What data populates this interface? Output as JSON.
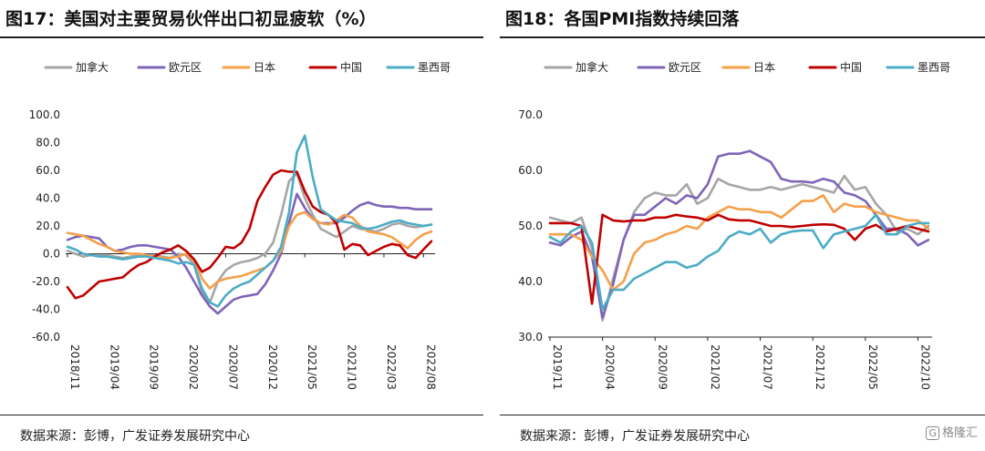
{
  "legend_series": [
    "加拿大",
    "欧元区",
    "日本",
    "中国",
    "墨西哥"
  ],
  "colors": [
    "#a6a6a6",
    "#7f64b8",
    "#f5a04a",
    "#c00000",
    "#4bacc6"
  ],
  "source_text": "数据来源：彭博，广发证券发展研究中心",
  "watermark": "格隆汇",
  "watermark_icon": "G",
  "chart_data": [
    {
      "type": "line",
      "title": "图17：美国对主要贸易伙伴出口初显疲软（%）",
      "xlabel": "",
      "ylabel": "",
      "ylim": [
        -60,
        100
      ],
      "yticks": [
        -60,
        -40,
        -20,
        0,
        20,
        40,
        60,
        80,
        100
      ],
      "ytick_labels": [
        "-60.0",
        "-40.0",
        "-20.0",
        "0.0",
        "20.0",
        "40.0",
        "60.0",
        "80.0",
        "100.0"
      ],
      "x": [
        "2018/11",
        "2018/12",
        "2019/01",
        "2019/02",
        "2019/03",
        "2019/04",
        "2019/05",
        "2019/06",
        "2019/07",
        "2019/08",
        "2019/09",
        "2019/10",
        "2019/11",
        "2019/12",
        "2020/01",
        "2020/02",
        "2020/03",
        "2020/04",
        "2020/05",
        "2020/06",
        "2020/07",
        "2020/08",
        "2020/09",
        "2020/10",
        "2020/11",
        "2020/12",
        "2021/01",
        "2021/02",
        "2021/03",
        "2021/04",
        "2021/05",
        "2021/06",
        "2021/07",
        "2021/08",
        "2021/09",
        "2021/10",
        "2021/11",
        "2021/12",
        "2022/01",
        "2022/02",
        "2022/03",
        "2022/04",
        "2022/05",
        "2022/06",
        "2022/07",
        "2022/08",
        "2022/09"
      ],
      "xtick_labels": [
        "2018/11",
        "2019/04",
        "2019/09",
        "2020/02",
        "2020/07",
        "2020/12",
        "2021/05",
        "2021/10",
        "2022/03",
        "2022/08"
      ],
      "legend": "top",
      "grid": false,
      "series": [
        {
          "name": "加拿大",
          "values": [
            2,
            0,
            -2,
            -1,
            -1,
            -1,
            -2,
            -3,
            -2,
            -1,
            -1,
            -1,
            -2,
            -3,
            0,
            -1,
            -8,
            -28,
            -35,
            -20,
            -12,
            -8,
            -6,
            -5,
            -3,
            0,
            8,
            28,
            52,
            58,
            40,
            28,
            18,
            15,
            12,
            16,
            20,
            18,
            17,
            16,
            18,
            21,
            22,
            20,
            19,
            20,
            21
          ]
        },
        {
          "name": "欧元区",
          "values": [
            10,
            12,
            13,
            12,
            11,
            5,
            2,
            3,
            5,
            6,
            6,
            5,
            4,
            3,
            -2,
            -10,
            -20,
            -30,
            -38,
            -43,
            -38,
            -33,
            -31,
            -30,
            -29,
            -22,
            -12,
            0,
            22,
            43,
            33,
            25,
            22,
            22,
            22,
            26,
            31,
            35,
            37,
            35,
            34,
            34,
            33,
            33,
            32,
            32,
            32
          ]
        },
        {
          "name": "日本",
          "values": [
            15,
            14,
            13,
            10,
            7,
            5,
            2,
            1,
            0,
            0,
            -1,
            -2,
            -3,
            -3,
            -2,
            0,
            -5,
            -18,
            -25,
            -20,
            -18,
            -17,
            -16,
            -14,
            -12,
            -10,
            -5,
            2,
            20,
            28,
            30,
            25,
            22,
            21,
            24,
            28,
            26,
            20,
            16,
            15,
            14,
            12,
            8,
            4,
            10,
            14,
            16
          ]
        },
        {
          "name": "中国",
          "values": [
            -24,
            -32,
            -30,
            -25,
            -20,
            -19,
            -18,
            -17,
            -12,
            -8,
            -6,
            -2,
            1,
            3,
            6,
            2,
            -4,
            -13,
            -10,
            -3,
            5,
            4,
            8,
            18,
            38,
            48,
            57,
            60,
            59,
            59,
            45,
            34,
            30,
            28,
            22,
            3,
            7,
            6,
            -1,
            2,
            5,
            7,
            6,
            -1,
            -3,
            3,
            9
          ]
        },
        {
          "name": "墨西哥",
          "values": [
            5,
            3,
            0,
            -1,
            -2,
            -2,
            -3,
            -4,
            -3,
            -2,
            -2,
            -3,
            -4,
            -5,
            -7,
            -6,
            -8,
            -25,
            -35,
            -38,
            -30,
            -25,
            -22,
            -20,
            -15,
            -10,
            -5,
            5,
            30,
            73,
            85,
            55,
            32,
            28,
            24,
            23,
            22,
            19,
            18,
            19,
            21,
            23,
            24,
            22,
            21,
            20,
            21
          ]
        }
      ]
    },
    {
      "type": "line",
      "title": "图18：各国PMI指数持续回落",
      "xlabel": "",
      "ylabel": "",
      "ylim": [
        30,
        70
      ],
      "yticks": [
        30,
        40,
        50,
        60,
        70
      ],
      "ytick_labels": [
        "30.0",
        "40.0",
        "50.0",
        "60.0",
        "70.0"
      ],
      "x": [
        "2019/11",
        "2019/12",
        "2020/01",
        "2020/02",
        "2020/03",
        "2020/04",
        "2020/05",
        "2020/06",
        "2020/07",
        "2020/08",
        "2020/09",
        "2020/10",
        "2020/11",
        "2020/12",
        "2021/01",
        "2021/02",
        "2021/03",
        "2021/04",
        "2021/05",
        "2021/06",
        "2021/07",
        "2021/08",
        "2021/09",
        "2021/10",
        "2021/11",
        "2021/12",
        "2022/01",
        "2022/02",
        "2022/03",
        "2022/04",
        "2022/05",
        "2022/06",
        "2022/07",
        "2022/08",
        "2022/09",
        "2022/10",
        "2022/11"
      ],
      "xtick_labels": [
        "2019/11",
        "2020/04",
        "2020/09",
        "2021/02",
        "2021/07",
        "2021/12",
        "2022/05",
        "2022/10"
      ],
      "legend": "top",
      "grid": false,
      "series": [
        {
          "name": "加拿大",
          "values": [
            51.5,
            51,
            50.5,
            51.5,
            46,
            33,
            40.5,
            47.5,
            52.5,
            55,
            56,
            55.5,
            55.5,
            57.5,
            54,
            55,
            58.5,
            57.5,
            57,
            56.5,
            56.5,
            57,
            56.5,
            57,
            57.5,
            57,
            56.5,
            56,
            59,
            56.5,
            57,
            54,
            52,
            49,
            49.5,
            48.5,
            50
          ]
        },
        {
          "name": "欧元区",
          "values": [
            47,
            46.5,
            48,
            49,
            44.5,
            33.5,
            39.5,
            47.5,
            52,
            52,
            53.5,
            55,
            54,
            55.5,
            55,
            57.5,
            62.5,
            63,
            63,
            63.5,
            62.5,
            61.5,
            58.5,
            58,
            58,
            57.8,
            58.5,
            58,
            56,
            55.5,
            54.5,
            52,
            49.5,
            49.5,
            48.5,
            46.5,
            47.5
          ]
        },
        {
          "name": "日本",
          "values": [
            48.5,
            48.5,
            48.5,
            47.5,
            44.5,
            42,
            38.5,
            40,
            45,
            47,
            47.5,
            48.5,
            49,
            50,
            49.5,
            51.5,
            52.5,
            53.5,
            53,
            53,
            52.5,
            52.5,
            51.5,
            53,
            54.5,
            54.5,
            55.5,
            52.5,
            54,
            53.5,
            53.5,
            52.5,
            52,
            51.5,
            51,
            51,
            49.5
          ]
        },
        {
          "name": "中国",
          "values": [
            50.5,
            50.5,
            50.5,
            50,
            36,
            52,
            51,
            50.8,
            51,
            51,
            51.5,
            51.5,
            52,
            51.7,
            51.5,
            51,
            52,
            51.2,
            51,
            51,
            50.5,
            50,
            50,
            49.8,
            50,
            50.2,
            50.3,
            50.2,
            49.5,
            47.5,
            49.5,
            50.2,
            49,
            49.5,
            50,
            49.5,
            49
          ]
        },
        {
          "name": "墨西哥",
          "values": [
            48,
            47,
            49,
            50,
            47,
            35,
            38.5,
            38.5,
            40.5,
            41.5,
            42.5,
            43.5,
            43.5,
            42.5,
            43,
            44.5,
            45.5,
            48,
            49,
            48.5,
            49.5,
            47,
            48.5,
            49,
            49.2,
            49.2,
            46,
            48.5,
            49,
            49.5,
            50,
            52,
            48.5,
            48.5,
            50,
            50.5,
            50.5
          ]
        }
      ]
    }
  ]
}
